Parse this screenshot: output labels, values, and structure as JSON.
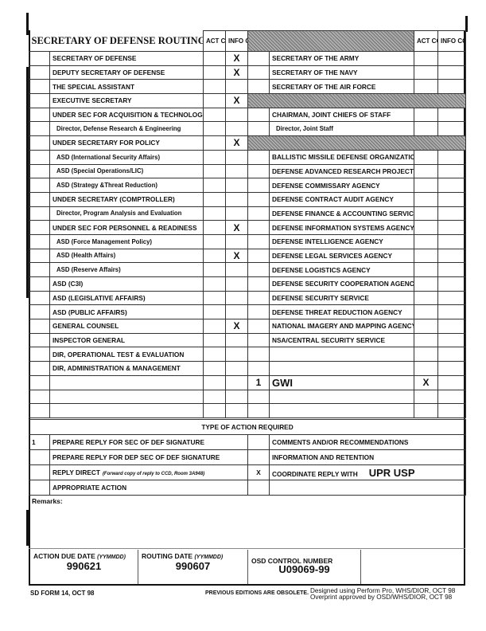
{
  "form_title": "SECRETARY OF DEFENSE ROUTING SLIP",
  "act_copy": "ACT COPY",
  "info_copy": "INFO COPY",
  "left_rows": [
    {
      "label": "SECRETARY OF DEFENSE",
      "info": "X"
    },
    {
      "label": "DEPUTY SECRETARY OF DEFENSE",
      "info": "X"
    },
    {
      "label": "THE SPECIAL ASSISTANT"
    },
    {
      "label": "EXECUTIVE SECRETARY",
      "info": "X"
    },
    {
      "label": "UNDER SEC FOR ACQUISITION & TECHNOLOGY"
    },
    {
      "label": "Director, Defense Research & Engineering",
      "sub": true
    },
    {
      "label": "UNDER SECRETARY FOR POLICY",
      "info": "X"
    },
    {
      "label": "ASD (International Security Affairs)",
      "sub": true
    },
    {
      "label": "ASD (Special Operations/LIC)",
      "sub": true
    },
    {
      "label": "ASD (Strategy &Threat Reduction)",
      "sub": true
    },
    {
      "label": "UNDER SECRETARY (COMPTROLLER)"
    },
    {
      "label": "Director, Program Analysis and Evaluation",
      "sub": true
    },
    {
      "label": "UNDER SEC FOR PERSONNEL & READINESS",
      "info": "X"
    },
    {
      "label": "ASD (Force Management Policy)",
      "sub": true
    },
    {
      "label": "ASD (Health Affairs)",
      "sub": true,
      "info": "X"
    },
    {
      "label": "ASD (Reserve Affairs)",
      "sub": true
    },
    {
      "label": "ASD (C3I)"
    },
    {
      "label": "ASD (LEGISLATIVE AFFAIRS)"
    },
    {
      "label": "ASD (PUBLIC AFFAIRS)"
    },
    {
      "label": "GENERAL COUNSEL",
      "info": "X"
    },
    {
      "label": "INSPECTOR GENERAL"
    },
    {
      "label": "DIR, OPERATIONAL TEST & EVALUATION"
    },
    {
      "label": "DIR, ADMINISTRATION & MANAGEMENT"
    },
    {
      "label": ""
    },
    {
      "label": ""
    },
    {
      "label": ""
    }
  ],
  "right_rows": [
    {
      "label": "SECRETARY OF THE ARMY"
    },
    {
      "label": "SECRETARY OF THE NAVY"
    },
    {
      "label": "SECRETARY OF THE AIR FORCE"
    },
    {
      "label": "",
      "shaded": true
    },
    {
      "label": "CHAIRMAN, JOINT CHIEFS OF STAFF"
    },
    {
      "label": "Director, Joint Staff",
      "sub": true
    },
    {
      "label": "",
      "shaded": true
    },
    {
      "label": "BALLISTIC MISSILE DEFENSE ORGANIZATION"
    },
    {
      "label": "DEFENSE ADVANCED RESEARCH PROJECTS AGENCY"
    },
    {
      "label": "DEFENSE COMMISSARY AGENCY"
    },
    {
      "label": "DEFENSE CONTRACT AUDIT AGENCY"
    },
    {
      "label": "DEFENSE FINANCE & ACCOUNTING SERVICE"
    },
    {
      "label": "DEFENSE INFORMATION SYSTEMS AGENCY"
    },
    {
      "label": "DEFENSE INTELLIGENCE AGENCY"
    },
    {
      "label": "DEFENSE LEGAL SERVICES AGENCY"
    },
    {
      "label": "DEFENSE LOGISTICS AGENCY"
    },
    {
      "label": "DEFENSE SECURITY COOPERATION AGENCY"
    },
    {
      "label": "DEFENSE SECURITY SERVICE"
    },
    {
      "label": "DEFENSE THREAT REDUCTION AGENCY"
    },
    {
      "label": "NATIONAL IMAGERY AND MAPPING AGENCY"
    },
    {
      "label": "NSA/CENTRAL SECURITY SERVICE"
    },
    {
      "label": ""
    },
    {
      "label": ""
    },
    {
      "label": "GWI",
      "num": "1",
      "act": "X",
      "big": true
    },
    {
      "label": ""
    },
    {
      "label": ""
    }
  ],
  "action_header": "TYPE OF ACTION REQUIRED",
  "actions": [
    {
      "num": "1",
      "left": "PREPARE REPLY FOR SEC OF DEF SIGNATURE",
      "mark": "",
      "right": "COMMENTS AND/OR RECOMMENDATIONS"
    },
    {
      "num": "",
      "left": "PREPARE REPLY FOR DEP SEC OF DEF SIGNATURE",
      "mark": "",
      "right": "INFORMATION AND RETENTION"
    },
    {
      "num": "",
      "left": "REPLY DIRECT",
      "left_note": "(Forward copy of reply to CCD, Room 3A948)",
      "mark": "X",
      "right": "COORDINATE REPLY WITH",
      "right_value": "UPR USP"
    },
    {
      "num": "",
      "left": "APPROPRIATE ACTION",
      "mark": "",
      "right": ""
    }
  ],
  "remarks_label": "Remarks:",
  "dates": {
    "due_label": "ACTION DUE DATE",
    "due_fmt": "(YYMMDD)",
    "due_value": "990621",
    "routing_label": "ROUTING DATE",
    "routing_fmt": "(YYMMDD)",
    "routing_value": "990607",
    "control_label": "OSD CONTROL NUMBER",
    "control_value": "U09069-99"
  },
  "footer": {
    "form_id": "SD FORM 14, OCT 98",
    "obsolete": "PREVIOUS EDITIONS ARE OBSOLETE.",
    "designed": "Designed using Perform Pro, WHS/DIOR, OCT 98",
    "overprint": "Overprint approved by OSD/WHS/DIOR,  OCT 98"
  }
}
